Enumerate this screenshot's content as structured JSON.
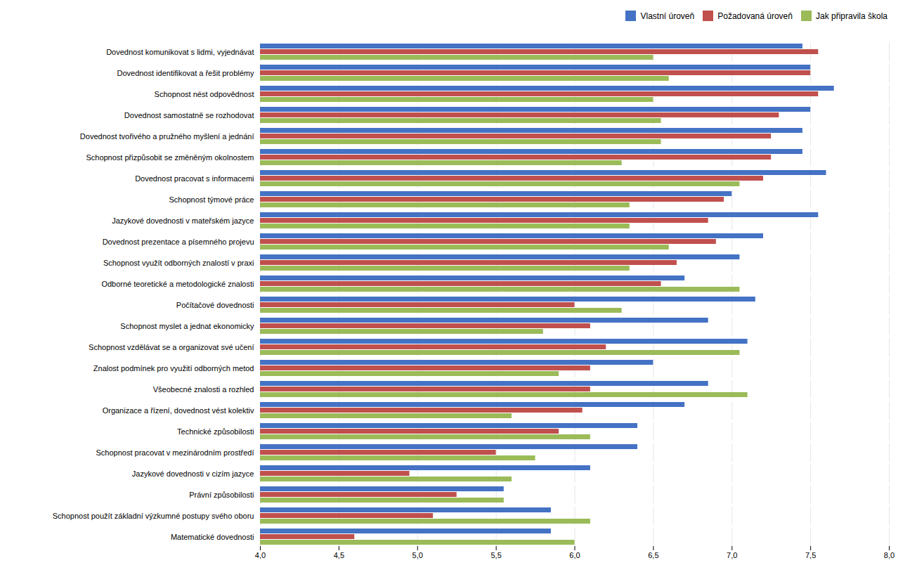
{
  "chart_data": {
    "type": "bar",
    "orientation": "horizontal",
    "categories": [
      "Dovednost komunikovat s lidmi, vyjednávat",
      "Dovednost identifikovat a řešit problémy",
      "Schopnost nést odpovědnost",
      "Dovednost samostatně se rozhodovat",
      "Dovednost tvořivého a pružného myšlení a jednání",
      "Schopnost přizpůsobit se změněným okolnostem",
      "Dovednost pracovat s informacemi",
      "Schopnost týmové práce",
      "Jazykové dovednosti v mateřském jazyce",
      "Dovednost prezentace a písemného projevu",
      "Schopnost využít odborných znalostí v praxi",
      "Odborné teoretické a metodologické znalosti",
      "Počítačové dovednosti",
      "Schopnost myslet a jednat ekonomicky",
      "Schopnost vzdělávat se a organizovat své učení",
      "Znalost podmínek pro využití odborných metod",
      "Všeobecné znalosti a rozhled",
      "Organizace a řízení, dovednost vést kolektiv",
      "Technické způsobilosti",
      "Schopnost pracovat v mezinárodním prostředí",
      "Jazykové dovednosti v cizím jazyce",
      "Právní způsobilosti",
      "Schopnost použít základní výzkumné postupy svého oboru",
      "Matematické dovednosti"
    ],
    "series": [
      {
        "name": "Vlastní úroveň",
        "color": "#4472C4",
        "values": [
          7.45,
          7.5,
          7.65,
          7.5,
          7.45,
          7.45,
          7.6,
          7.0,
          7.55,
          7.2,
          7.05,
          6.7,
          7.15,
          6.85,
          7.1,
          6.5,
          6.85,
          6.7,
          6.4,
          6.4,
          6.1,
          5.55,
          5.85,
          5.85
        ]
      },
      {
        "name": "Požadovaná úroveň",
        "color": "#C0504D",
        "values": [
          7.55,
          7.5,
          7.55,
          7.3,
          7.25,
          7.25,
          7.2,
          6.95,
          6.85,
          6.9,
          6.65,
          6.55,
          6.0,
          6.1,
          6.2,
          6.1,
          6.1,
          6.05,
          5.9,
          5.5,
          4.95,
          5.25,
          5.1,
          4.6
        ]
      },
      {
        "name": "Jak připravila škola",
        "color": "#9BBB59",
        "values": [
          6.5,
          6.6,
          6.5,
          6.55,
          6.55,
          6.3,
          7.05,
          6.35,
          6.35,
          6.6,
          6.35,
          7.05,
          6.3,
          5.8,
          7.05,
          5.9,
          7.1,
          5.6,
          6.1,
          5.75,
          5.6,
          5.55,
          6.1,
          6.0
        ]
      }
    ],
    "xlim": [
      4.0,
      8.0
    ],
    "xticks": [
      {
        "value": 4.0,
        "label": "4,0"
      },
      {
        "value": 4.5,
        "label": "4,5"
      },
      {
        "value": 5.0,
        "label": "5,0"
      },
      {
        "value": 5.5,
        "label": "5,5"
      },
      {
        "value": 6.0,
        "label": "6,0"
      },
      {
        "value": 6.5,
        "label": "6,5"
      },
      {
        "value": 7.0,
        "label": "7,0"
      },
      {
        "value": 7.5,
        "label": "7,5"
      },
      {
        "value": 8.0,
        "label": "8,0"
      }
    ],
    "grid": true,
    "legend": "upper right"
  }
}
